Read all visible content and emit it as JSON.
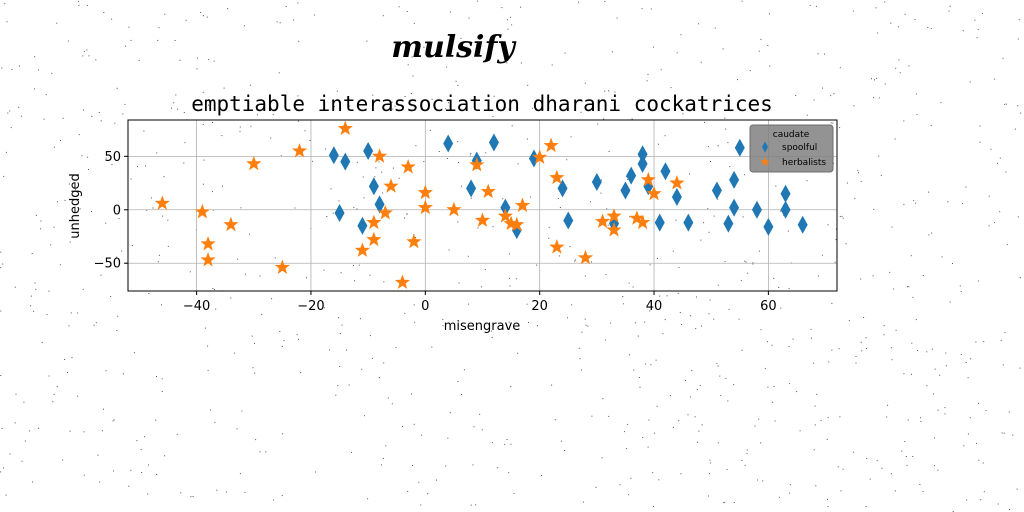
{
  "figure": {
    "suptitle": "mulsify"
  },
  "colors": {
    "spoolful": "#1f77b4",
    "herbalists": "#ff7f0e",
    "grid": "#b0b0b0",
    "legend_bg": "#808080"
  },
  "chart_data": {
    "type": "scatter",
    "title": "emptiable interassociation dharani cockatrices",
    "xlabel": "misengrave",
    "ylabel": "unhedged",
    "xlim": [
      -52,
      72
    ],
    "ylim": [
      -76,
      84
    ],
    "xticks": [
      -40,
      -20,
      0,
      20,
      40,
      60
    ],
    "yticks": [
      -50,
      0,
      50
    ],
    "grid": true,
    "legend": {
      "title": "caudate",
      "placement": "top-right"
    },
    "series": [
      {
        "name": "spoolful",
        "marker": "thin_diamond",
        "points": [
          [
            -16,
            51
          ],
          [
            -15,
            -3
          ],
          [
            -14,
            45
          ],
          [
            -11,
            -15
          ],
          [
            -10,
            55
          ],
          [
            -9,
            22
          ],
          [
            -8,
            5
          ],
          [
            4,
            62
          ],
          [
            8,
            20
          ],
          [
            9,
            46
          ],
          [
            12,
            63
          ],
          [
            14,
            2
          ],
          [
            16,
            -19
          ],
          [
            19,
            48
          ],
          [
            24,
            20
          ],
          [
            25,
            -10
          ],
          [
            30,
            26
          ],
          [
            33,
            -13
          ],
          [
            35,
            18
          ],
          [
            36,
            32
          ],
          [
            38,
            43
          ],
          [
            38,
            52
          ],
          [
            39,
            22
          ],
          [
            41,
            -12
          ],
          [
            42,
            36
          ],
          [
            44,
            12
          ],
          [
            46,
            -12
          ],
          [
            51,
            18
          ],
          [
            53,
            -13
          ],
          [
            54,
            28
          ],
          [
            54,
            2
          ],
          [
            55,
            58
          ],
          [
            58,
            0
          ],
          [
            60,
            -16
          ],
          [
            63,
            15
          ],
          [
            63,
            0
          ],
          [
            66,
            -14
          ]
        ]
      },
      {
        "name": "herbalists",
        "marker": "star",
        "points": [
          [
            -46,
            6
          ],
          [
            -39,
            -2
          ],
          [
            -38,
            -32
          ],
          [
            -38,
            -47
          ],
          [
            -34,
            -14
          ],
          [
            -30,
            43
          ],
          [
            -25,
            -54
          ],
          [
            -22,
            55
          ],
          [
            -14,
            76
          ],
          [
            -11,
            -38
          ],
          [
            -9,
            -12
          ],
          [
            -9,
            -28
          ],
          [
            -8,
            50
          ],
          [
            -7,
            -3
          ],
          [
            -6,
            22
          ],
          [
            -4,
            -68
          ],
          [
            -3,
            40
          ],
          [
            -2,
            -30
          ],
          [
            0,
            2
          ],
          [
            0,
            16
          ],
          [
            5,
            0
          ],
          [
            9,
            42
          ],
          [
            10,
            -10
          ],
          [
            11,
            17
          ],
          [
            14,
            -6
          ],
          [
            15,
            -13
          ],
          [
            16,
            -14
          ],
          [
            17,
            4
          ],
          [
            20,
            49
          ],
          [
            22,
            60
          ],
          [
            23,
            30
          ],
          [
            23,
            -35
          ],
          [
            28,
            -45
          ],
          [
            31,
            -11
          ],
          [
            33,
            -6
          ],
          [
            33,
            -19
          ],
          [
            37,
            -8
          ],
          [
            38,
            -12
          ],
          [
            39,
            28
          ],
          [
            40,
            15
          ],
          [
            44,
            25
          ]
        ]
      }
    ]
  }
}
